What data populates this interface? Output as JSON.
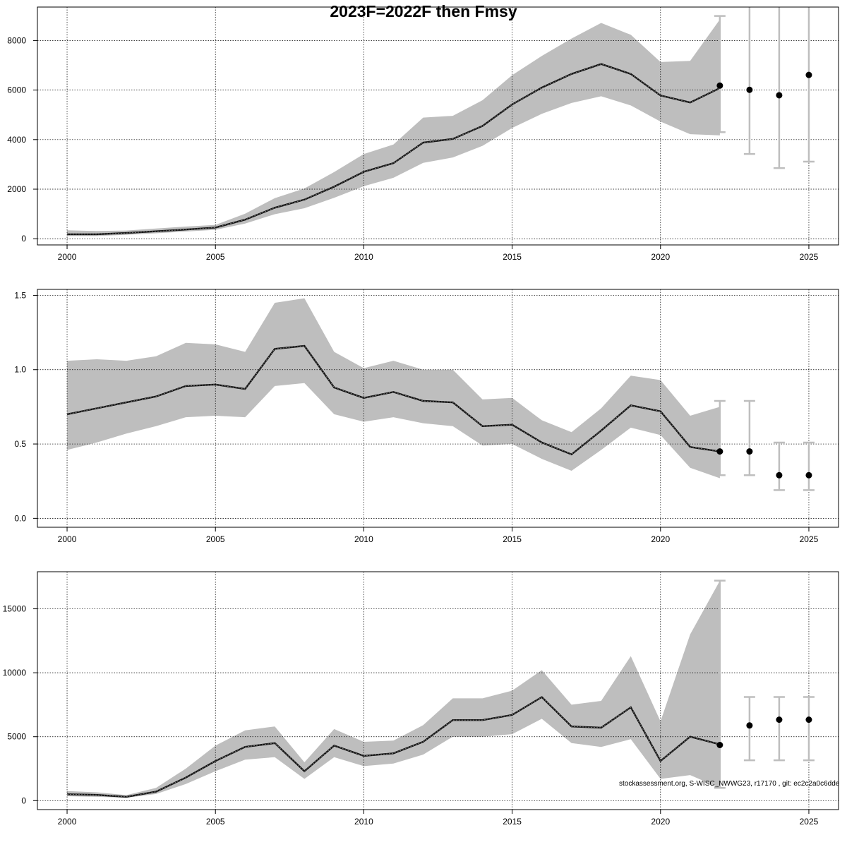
{
  "title": "2023F=2022F then Fmsy",
  "credit": "stockassessment.org, S-WISC_NWWG23, r17170 , git: ec2c2a0c6dde",
  "style": {
    "band": "#bebebe",
    "line": "#000000",
    "whisker": "#bebebe",
    "grid": "#000000"
  },
  "chart_data": [
    {
      "type": "area",
      "xlabel": "",
      "ylabel": "",
      "xlim": [
        1999,
        2026
      ],
      "ylim": [
        -250,
        9350
      ],
      "xticks": [
        2000,
        2005,
        2010,
        2015,
        2020,
        2025
      ],
      "yticks": [
        0,
        2000,
        4000,
        6000,
        8000
      ],
      "x": [
        2000,
        2001,
        2002,
        2003,
        2004,
        2005,
        2006,
        2007,
        2008,
        2009,
        2010,
        2011,
        2012,
        2013,
        2014,
        2015,
        2016,
        2017,
        2018,
        2019,
        2020,
        2021,
        2022
      ],
      "estimate": [
        180,
        180,
        230,
        300,
        370,
        450,
        770,
        1250,
        1580,
        2100,
        2700,
        3050,
        3880,
        4030,
        4550,
        5420,
        6100,
        6650,
        7050,
        6650,
        5780,
        5500,
        6080
      ],
      "lower": [
        110,
        110,
        160,
        220,
        290,
        360,
        610,
        990,
        1230,
        1650,
        2120,
        2460,
        3060,
        3280,
        3750,
        4470,
        5040,
        5480,
        5750,
        5380,
        4730,
        4220,
        4170
      ],
      "upper": [
        340,
        310,
        330,
        410,
        490,
        560,
        1010,
        1640,
        2030,
        2690,
        3420,
        3800,
        4890,
        4960,
        5590,
        6600,
        7380,
        8080,
        8710,
        8230,
        7130,
        7180,
        8850
      ],
      "forecast": [
        {
          "x": 2022,
          "y": 6180,
          "lower": 4300,
          "upper": 8990
        },
        {
          "x": 2023,
          "y": 6010,
          "lower": 3420,
          "upper": 9350
        },
        {
          "x": 2024,
          "y": 5790,
          "lower": 2850,
          "upper": 9350
        },
        {
          "x": 2025,
          "y": 6610,
          "lower": 3110,
          "upper": 9350
        }
      ]
    },
    {
      "type": "area",
      "xlabel": "",
      "ylabel": "",
      "xlim": [
        1999,
        2026
      ],
      "ylim": [
        -0.06,
        1.54
      ],
      "xticks": [
        2000,
        2005,
        2010,
        2015,
        2020,
        2025
      ],
      "yticks": [
        0.0,
        0.5,
        1.0,
        1.5
      ],
      "ytick_labels": [
        "0.0",
        "0.5",
        "1.0",
        "1.5"
      ],
      "x": [
        2000,
        2001,
        2002,
        2003,
        2004,
        2005,
        2006,
        2007,
        2008,
        2009,
        2010,
        2011,
        2012,
        2013,
        2014,
        2015,
        2016,
        2017,
        2018,
        2019,
        2020,
        2021,
        2022
      ],
      "estimate": [
        0.7,
        0.74,
        0.78,
        0.82,
        0.89,
        0.9,
        0.87,
        1.14,
        1.16,
        0.88,
        0.81,
        0.85,
        0.79,
        0.78,
        0.62,
        0.63,
        0.51,
        0.43,
        0.59,
        0.76,
        0.72,
        0.48,
        0.45
      ],
      "lower": [
        0.46,
        0.51,
        0.57,
        0.62,
        0.68,
        0.69,
        0.68,
        0.89,
        0.91,
        0.7,
        0.65,
        0.68,
        0.64,
        0.62,
        0.49,
        0.5,
        0.4,
        0.32,
        0.46,
        0.61,
        0.56,
        0.34,
        0.27
      ],
      "upper": [
        1.06,
        1.07,
        1.06,
        1.09,
        1.18,
        1.17,
        1.12,
        1.45,
        1.48,
        1.12,
        1.01,
        1.06,
        1.0,
        1.0,
        0.8,
        0.81,
        0.66,
        0.58,
        0.74,
        0.96,
        0.93,
        0.69,
        0.75
      ],
      "forecast": [
        {
          "x": 2022,
          "y": 0.45,
          "lower": 0.29,
          "upper": 0.79
        },
        {
          "x": 2023,
          "y": 0.45,
          "lower": 0.29,
          "upper": 0.79
        },
        {
          "x": 2024,
          "y": 0.29,
          "lower": 0.19,
          "upper": 0.51
        },
        {
          "x": 2025,
          "y": 0.29,
          "lower": 0.19,
          "upper": 0.51
        }
      ]
    },
    {
      "type": "area",
      "xlabel": "",
      "ylabel": "",
      "xlim": [
        1999,
        2026
      ],
      "ylim": [
        -700,
        17900
      ],
      "xticks": [
        2000,
        2005,
        2010,
        2015,
        2020,
        2025
      ],
      "yticks": [
        0,
        5000,
        10000,
        15000
      ],
      "x": [
        2000,
        2001,
        2002,
        2003,
        2004,
        2005,
        2006,
        2007,
        2008,
        2009,
        2010,
        2011,
        2012,
        2013,
        2014,
        2015,
        2016,
        2017,
        2018,
        2019,
        2020,
        2021,
        2022
      ],
      "estimate": [
        500,
        450,
        300,
        700,
        1800,
        3100,
        4200,
        4500,
        2300,
        4300,
        3500,
        3700,
        4600,
        6300,
        6300,
        6700,
        8100,
        5800,
        5700,
        7300,
        3100,
        5000,
        4400
      ],
      "lower": [
        350,
        300,
        220,
        520,
        1300,
        2300,
        3200,
        3400,
        1700,
        3400,
        2700,
        2900,
        3600,
        5000,
        5000,
        5200,
        6400,
        4500,
        4200,
        4800,
        1700,
        2000,
        1000
      ],
      "upper": [
        750,
        650,
        430,
        1000,
        2500,
        4300,
        5500,
        5800,
        3000,
        5600,
        4600,
        4700,
        5900,
        8000,
        8000,
        8600,
        10200,
        7500,
        7800,
        11300,
        6200,
        13000,
        17200
      ],
      "forecast": [
        {
          "x": 2022,
          "y": 4350,
          "lower": 1000,
          "upper": 17200
        },
        {
          "x": 2023,
          "y": 5880,
          "lower": 3160,
          "upper": 8100
        },
        {
          "x": 2024,
          "y": 6330,
          "lower": 3160,
          "upper": 8100
        },
        {
          "x": 2025,
          "y": 6330,
          "lower": 3160,
          "upper": 8100
        }
      ]
    }
  ]
}
